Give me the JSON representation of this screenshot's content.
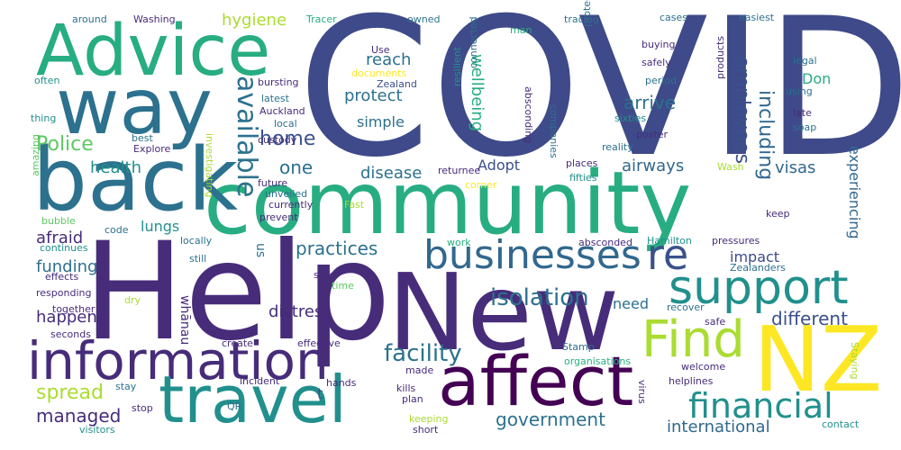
{
  "cloud": {
    "covid": "COVID",
    "help": "Help",
    "community": "community",
    "new": "New",
    "nz": "NZ",
    "back": "back",
    "way": "way",
    "advice": "Advice",
    "information": "information",
    "travel": "travel",
    "affect": "affect",
    "support": "support",
    "find": "Find",
    "re": "re",
    "businesses": "businesses",
    "financial": "financial",
    "available": "available",
    "employees": "employees",
    "including": "including",
    "facility": "facility",
    "isolation": "isolation",
    "police": "Police",
    "home": "home",
    "one": "one",
    "health": "health",
    "disease": "disease",
    "adopt": "Adopt",
    "airways": "airways",
    "visas": "visas",
    "experiencing": "experiencing",
    "practices": "practices",
    "afraid": "afraid",
    "lungs": "lungs",
    "funding": "funding",
    "happens": "happens",
    "distress": "distress",
    "need": "need",
    "different": "different",
    "spread": "spread",
    "managed": "managed",
    "government": "government",
    "international": "international",
    "impact": "impact",
    "hygiene": "hygiene",
    "reach": "reach",
    "protect": "protect",
    "simple": "simple",
    "arrive": "arrive",
    "don": "Don",
    "wellbeing": "wellbeing",
    "whanau": "whānau",
    "us": "us",
    "t": "t",
    "around": "around",
    "washing": "Washing",
    "tracer": "Tracer",
    "owned": "owned",
    "man": "man",
    "tracing": "tracing",
    "cases": "cases",
    "easiest": "easiest",
    "use": "Use",
    "documents": "documents",
    "zealand": "Zealand",
    "bursting": "bursting",
    "latest": "latest",
    "auckland": "Auckland",
    "local": "local",
    "custody": "custody",
    "often": "often",
    "thing": "thing",
    "best": "best",
    "explore": "Explore",
    "buying": "buying",
    "safely": "safely",
    "period": "period",
    "legal": "legal",
    "using": "using",
    "late": "late",
    "soap": "soap",
    "sixties": "sixties",
    "poster": "poster",
    "reality": "reality",
    "places": "places",
    "fifties": "fifties",
    "wash": "Wash",
    "returnee": "returnee",
    "corner": "corner",
    "future": "future",
    "unveiled": "unveiled",
    "currently": "currently",
    "prevent": "prevent",
    "fast": "Fast",
    "code": "code",
    "locally": "locally",
    "still": "still",
    "continues": "continues",
    "effects": "effects",
    "responding": "responding",
    "together": "together",
    "seconds": "seconds",
    "dry": "dry",
    "bubble": "bubble",
    "sick": "sick",
    "time": "time",
    "work": "work",
    "absconded": "absconded",
    "hamilton": "Hamilton",
    "pressures": "pressures",
    "keep": "keep",
    "zealanders": "Zealanders",
    "recover": "recover",
    "safe": "safe",
    "create": "create",
    "effective": "effective",
    "stamp": "Stamp",
    "organisations": "organisations",
    "made": "made",
    "welcome": "welcome",
    "helplines": "helplines",
    "incident": "incident",
    "hands": "hands",
    "kills": "kills",
    "plan": "plan",
    "stay": "stay",
    "stop": "stop",
    "visitors": "visitors",
    "qr": "QR",
    "keeping": "keeping",
    "short": "short",
    "contact": "contact",
    "amazing": "amazing",
    "investigating": "investigating",
    "protective": "protective",
    "absconding": "absconding",
    "resilient": "resilient",
    "connected": "connected",
    "companies": "companies",
    "products": "products",
    "staying": "Staying",
    "virus": "virus"
  },
  "palette": [
    "#440154",
    "#472c7a",
    "#3b518b",
    "#2c718e",
    "#21908d",
    "#27ad81",
    "#5cc863",
    "#aadc32",
    "#fde725"
  ]
}
